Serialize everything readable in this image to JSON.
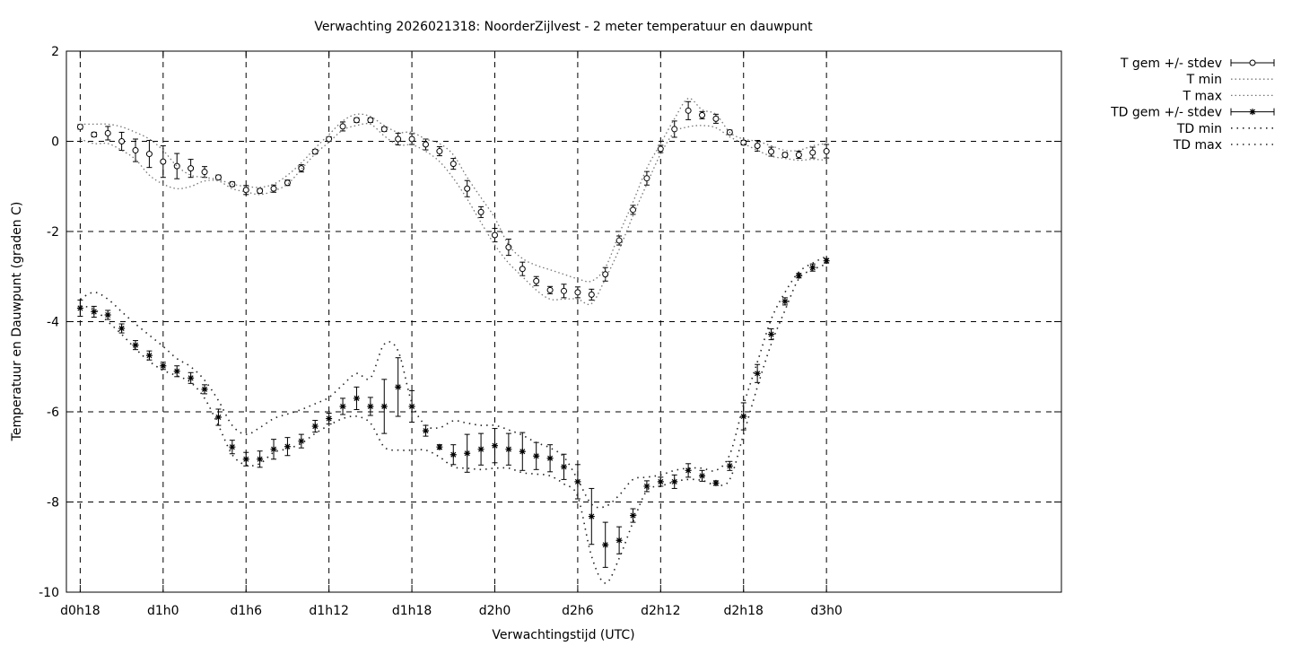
{
  "chart_data": {
    "type": "line",
    "title": "Verwachting 2026021318: NoorderZijlvest - 2 meter temperatuur en dauwpunt",
    "xlabel": "Verwachtingstijd (UTC)",
    "ylabel": "Temperatuur en Dauwpunt (graden C)",
    "ylim": [
      -10,
      2
    ],
    "yticks": [
      -10,
      -8,
      -6,
      -4,
      -2,
      0,
      2
    ],
    "xlim": [
      17,
      89
    ],
    "xticks": [
      {
        "x": 18,
        "label": "d0h18"
      },
      {
        "x": 24,
        "label": "d1h0"
      },
      {
        "x": 30,
        "label": "d1h6"
      },
      {
        "x": 36,
        "label": "d1h12"
      },
      {
        "x": 42,
        "label": "d1h18"
      },
      {
        "x": 48,
        "label": "d2h0"
      },
      {
        "x": 54,
        "label": "d2h6"
      },
      {
        "x": 60,
        "label": "d2h12"
      },
      {
        "x": 66,
        "label": "d2h18"
      },
      {
        "x": 72,
        "label": "d3h0"
      }
    ],
    "grid": true,
    "legend_position": "outside-top-right",
    "x": [
      18,
      19,
      20,
      21,
      22,
      23,
      24,
      25,
      26,
      27,
      28,
      29,
      30,
      31,
      32,
      33,
      34,
      35,
      36,
      37,
      38,
      39,
      40,
      41,
      42,
      43,
      44,
      45,
      46,
      47,
      48,
      49,
      50,
      51,
      52,
      53,
      54,
      55,
      56,
      57,
      58,
      59,
      60,
      61,
      62,
      63,
      64,
      65,
      66,
      67,
      68,
      69,
      70,
      71,
      72
    ],
    "series": [
      {
        "name": "T gem +/- stdev",
        "marker": "circle",
        "values": [
          0.32,
          0.15,
          0.18,
          0.0,
          -0.2,
          -0.28,
          -0.45,
          -0.55,
          -0.6,
          -0.68,
          -0.8,
          -0.95,
          -1.08,
          -1.1,
          -1.05,
          -0.92,
          -0.6,
          -0.23,
          0.05,
          0.33,
          0.47,
          0.47,
          0.27,
          0.05,
          0.05,
          -0.07,
          -0.22,
          -0.5,
          -1.05,
          -1.57,
          -2.08,
          -2.35,
          -2.83,
          -3.1,
          -3.3,
          -3.32,
          -3.35,
          -3.4,
          -2.95,
          -2.2,
          -1.52,
          -0.82,
          -0.17,
          0.27,
          0.68,
          0.58,
          0.5,
          0.2,
          -0.03,
          -0.1,
          -0.23,
          -0.3,
          -0.3,
          -0.25,
          -0.22
        ],
        "stdev": [
          0.05,
          0.05,
          0.15,
          0.2,
          0.25,
          0.3,
          0.35,
          0.28,
          0.2,
          0.12,
          0.05,
          0.05,
          0.1,
          0.05,
          0.08,
          0.06,
          0.08,
          0.05,
          0.05,
          0.1,
          0.05,
          0.05,
          0.05,
          0.13,
          0.12,
          0.12,
          0.1,
          0.12,
          0.18,
          0.12,
          0.15,
          0.18,
          0.15,
          0.1,
          0.08,
          0.15,
          0.12,
          0.12,
          0.15,
          0.1,
          0.1,
          0.15,
          0.08,
          0.18,
          0.2,
          0.08,
          0.1,
          0.05,
          0.05,
          0.12,
          0.1,
          0.05,
          0.08,
          0.12,
          0.15
        ]
      },
      {
        "name": "T min",
        "style": "dotted",
        "values": [
          0.05,
          -0.05,
          -0.05,
          -0.2,
          -0.4,
          -0.75,
          -0.95,
          -1.05,
          -1.0,
          -0.88,
          -0.88,
          -1.05,
          -1.12,
          -1.18,
          -1.1,
          -0.95,
          -0.62,
          -0.28,
          -0.02,
          0.25,
          0.35,
          0.38,
          0.12,
          -0.08,
          -0.08,
          -0.22,
          -0.45,
          -0.82,
          -1.28,
          -1.8,
          -2.3,
          -2.7,
          -3.0,
          -3.3,
          -3.5,
          -3.5,
          -3.5,
          -3.6,
          -3.05,
          -2.4,
          -1.65,
          -0.95,
          -0.28,
          0.2,
          0.32,
          0.35,
          0.3,
          0.1,
          -0.05,
          -0.2,
          -0.33,
          -0.38,
          -0.42,
          -0.4,
          -0.42
        ]
      },
      {
        "name": "T max",
        "style": "dotted",
        "values": [
          0.38,
          0.38,
          0.38,
          0.32,
          0.2,
          0.05,
          -0.2,
          -0.55,
          -0.75,
          -0.8,
          -0.85,
          -0.95,
          -1.0,
          -1.02,
          -0.95,
          -0.75,
          -0.48,
          -0.15,
          0.15,
          0.45,
          0.6,
          0.55,
          0.35,
          0.2,
          0.2,
          0.05,
          -0.05,
          -0.3,
          -0.8,
          -1.25,
          -1.7,
          -2.3,
          -2.6,
          -2.75,
          -2.85,
          -2.95,
          -3.05,
          -3.1,
          -2.8,
          -2.05,
          -1.35,
          -0.6,
          -0.05,
          0.5,
          0.95,
          0.7,
          0.6,
          0.2,
          0.05,
          0.0,
          -0.1,
          -0.2,
          -0.2,
          -0.1,
          -0.05
        ]
      },
      {
        "name": "TD gem +/- stdev",
        "marker": "star",
        "values": [
          -3.7,
          -3.78,
          -3.85,
          -4.15,
          -4.52,
          -4.75,
          -4.98,
          -5.1,
          -5.25,
          -5.5,
          -6.12,
          -6.78,
          -7.05,
          -7.05,
          -6.83,
          -6.77,
          -6.65,
          -6.32,
          -6.15,
          -5.88,
          -5.7,
          -5.88,
          -5.88,
          -5.45,
          -5.88,
          -6.42,
          -6.78,
          -6.95,
          -6.92,
          -6.83,
          -6.75,
          -6.83,
          -6.88,
          -6.98,
          -7.03,
          -7.22,
          -7.55,
          -8.32,
          -8.95,
          -8.85,
          -8.3,
          -7.65,
          -7.55,
          -7.55,
          -7.3,
          -7.42,
          -7.58,
          -7.2,
          -6.1,
          -5.15,
          -4.28,
          -3.55,
          -2.98,
          -2.8,
          -2.65
        ],
        "stdev": [
          0.18,
          0.12,
          0.1,
          0.1,
          0.1,
          0.1,
          0.08,
          0.12,
          0.12,
          0.1,
          0.18,
          0.15,
          0.15,
          0.18,
          0.22,
          0.2,
          0.15,
          0.13,
          0.12,
          0.18,
          0.25,
          0.2,
          0.6,
          0.65,
          0.35,
          0.12,
          0.05,
          0.22,
          0.42,
          0.35,
          0.38,
          0.35,
          0.42,
          0.3,
          0.3,
          0.28,
          0.38,
          0.62,
          0.5,
          0.3,
          0.15,
          0.12,
          0.1,
          0.15,
          0.15,
          0.12,
          0.05,
          0.1,
          0.3,
          0.2,
          0.12,
          0.08,
          0.05,
          0.08,
          0.05
        ]
      },
      {
        "name": "TD min",
        "style": "dotted",
        "values": [
          -3.65,
          -3.72,
          -4.0,
          -4.28,
          -4.6,
          -4.88,
          -5.08,
          -5.2,
          -5.35,
          -5.7,
          -6.3,
          -6.95,
          -7.18,
          -7.15,
          -6.9,
          -6.82,
          -6.7,
          -6.48,
          -6.3,
          -6.15,
          -6.1,
          -6.25,
          -6.78,
          -6.85,
          -6.85,
          -6.85,
          -7.0,
          -7.22,
          -7.25,
          -7.28,
          -7.25,
          -7.25,
          -7.35,
          -7.38,
          -7.42,
          -7.6,
          -7.88,
          -9.2,
          -9.8,
          -9.25,
          -8.45,
          -7.75,
          -7.65,
          -7.55,
          -7.5,
          -7.52,
          -7.62,
          -7.5,
          -6.5,
          -5.45,
          -4.5,
          -3.75,
          -3.05,
          -2.85,
          -2.72
        ]
      },
      {
        "name": "TD max",
        "style": "dotted",
        "values": [
          -3.5,
          -3.35,
          -3.5,
          -3.78,
          -4.05,
          -4.3,
          -4.55,
          -4.82,
          -5.0,
          -5.3,
          -5.75,
          -6.3,
          -6.5,
          -6.35,
          -6.15,
          -6.05,
          -5.95,
          -5.82,
          -5.68,
          -5.4,
          -5.15,
          -5.25,
          -4.5,
          -4.65,
          -5.8,
          -6.3,
          -6.35,
          -6.2,
          -6.25,
          -6.3,
          -6.3,
          -6.4,
          -6.52,
          -6.68,
          -6.8,
          -7.0,
          -7.5,
          -8.05,
          -8.1,
          -7.85,
          -7.5,
          -7.45,
          -7.4,
          -7.3,
          -7.25,
          -7.25,
          -7.3,
          -6.95,
          -5.85,
          -4.9,
          -3.95,
          -3.35,
          -2.9,
          -2.7,
          -2.55
        ]
      }
    ]
  }
}
